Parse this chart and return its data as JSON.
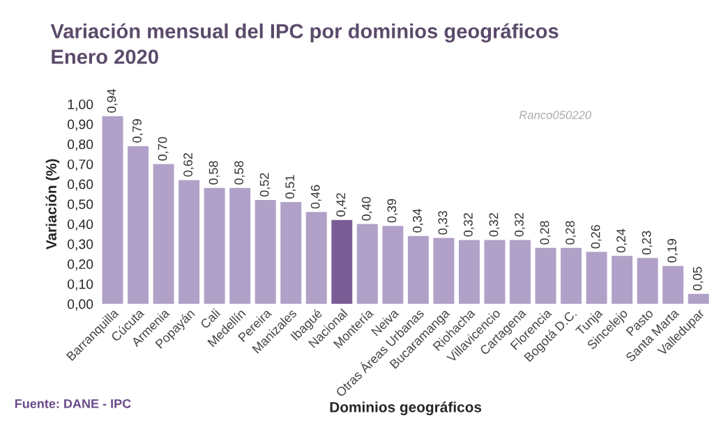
{
  "chart_data": {
    "type": "bar",
    "title": "Variación mensual del IPC por dominios geográficos",
    "subtitle": "Enero 2020",
    "xlabel": "Dominios geográficos",
    "ylabel": "Variación (%)",
    "categories": [
      "Barranquilla",
      "Cúcuta",
      "Armenia",
      "Popayán",
      "Cali",
      "Medellín",
      "Pereira",
      "Manizales",
      "Ibagué",
      "Nacional",
      "Montería",
      "Neiva",
      "Otras Áreas Urbanas",
      "Bucaramanga",
      "Riohacha",
      "Villavicencio",
      "Cartagena",
      "Florencia",
      "Bogotá D.C.",
      "Tunja",
      "Sincelejo",
      "Pasto",
      "Santa Marta",
      "Valledupar"
    ],
    "values": [
      0.94,
      0.79,
      0.7,
      0.62,
      0.58,
      0.58,
      0.52,
      0.51,
      0.46,
      0.42,
      0.4,
      0.39,
      0.34,
      0.33,
      0.32,
      0.32,
      0.32,
      0.28,
      0.28,
      0.26,
      0.24,
      0.23,
      0.19,
      0.05
    ],
    "value_labels": [
      "0,94",
      "0,79",
      "0,70",
      "0,62",
      "0,58",
      "0,58",
      "0,52",
      "0,51",
      "0,46",
      "0,42",
      "0,40",
      "0,39",
      "0,34",
      "0,33",
      "0,32",
      "0,32",
      "0,32",
      "0,28",
      "0,28",
      "0,26",
      "0,24",
      "0,23",
      "0,19",
      "0,05"
    ],
    "colors": [
      "#b0a1c8",
      "#b0a1c8",
      "#b0a1c8",
      "#b0a1c8",
      "#b0a1c8",
      "#b0a1c8",
      "#b0a1c8",
      "#b0a1c8",
      "#b0a1c8",
      "#7b5d96",
      "#b0a1c8",
      "#b0a1c8",
      "#b0a1c8",
      "#b0a1c8",
      "#b0a1c8",
      "#b0a1c8",
      "#b0a1c8",
      "#b0a1c8",
      "#b0a1c8",
      "#b0a1c8",
      "#b0a1c8",
      "#b0a1c8",
      "#b0a1c8",
      "#b0a1c8"
    ],
    "ylim": [
      0,
      1
    ],
    "yticks": [
      {
        "value": 0,
        "label": "0,00"
      },
      {
        "value": 0.1,
        "label": "0,10"
      },
      {
        "value": 0.2,
        "label": "0,20"
      },
      {
        "value": 0.3,
        "label": "0,30"
      },
      {
        "value": 0.4,
        "label": "0,40"
      },
      {
        "value": 0.5,
        "label": "0,50"
      },
      {
        "value": 0.6,
        "label": "0,60"
      },
      {
        "value": 0.7,
        "label": "0,70"
      },
      {
        "value": 0.8,
        "label": "0,80"
      },
      {
        "value": 0.9,
        "label": "0,90"
      },
      {
        "value": 1,
        "label": "1,00"
      }
    ],
    "annotations": [
      "Ranco050220",
      "Fuente: DANE - IPC"
    ]
  }
}
